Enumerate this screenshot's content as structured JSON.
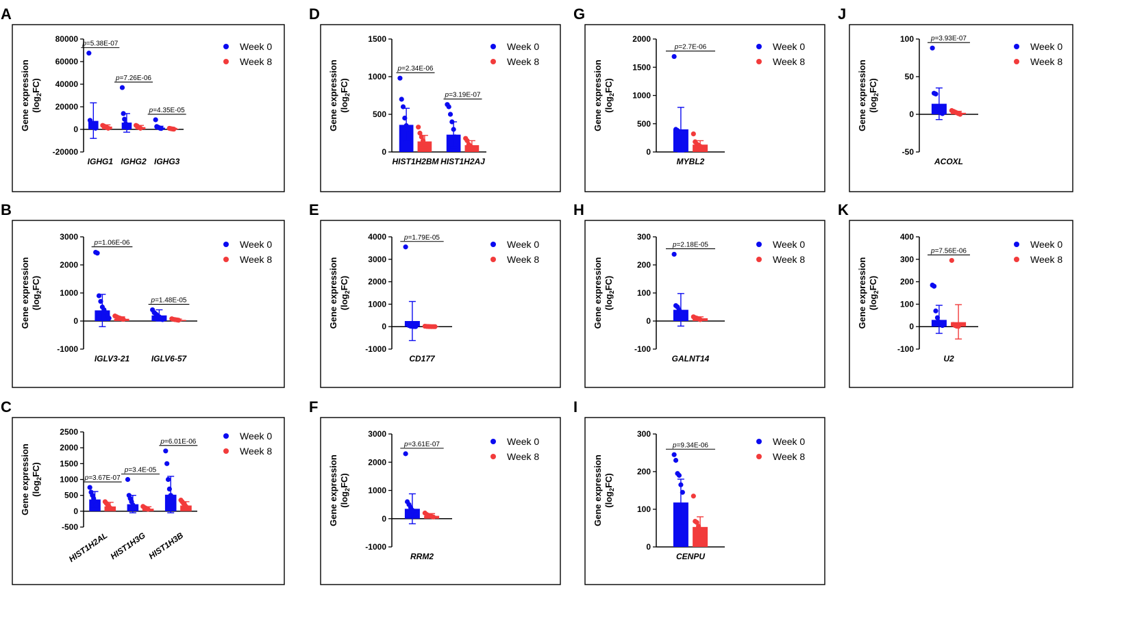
{
  "colors": {
    "week0": "#0b0bf0",
    "week8": "#f23b3b"
  },
  "y_label_line1": "Gene expression",
  "y_label_line2": "(log",
  "y_label_sub": "2",
  "y_label_end": "FC)",
  "p_prefix": "p",
  "legend": [
    "Week 0",
    "Week 8"
  ],
  "chart_data": [
    {
      "id": "A",
      "letter": "A",
      "type": "bar",
      "ylim": [
        -20000,
        80000
      ],
      "yticks": [
        -20000,
        0,
        20000,
        40000,
        60000,
        80000
      ],
      "rotate": false,
      "categories": [
        "IGHG1",
        "IGHG2",
        "IGHG3"
      ],
      "series": [
        {
          "name": "Week 0",
          "values": [
            7500,
            6000,
            1500
          ],
          "err_up": [
            23500,
            14000,
            2800
          ],
          "err_down": [
            -8000,
            -2500,
            500
          ],
          "points": [
            [
              67500,
              8000,
              5000,
              3000,
              2000,
              1500,
              1000
            ],
            [
              37000,
              14000,
              9000,
              5000,
              3000,
              1500
            ],
            [
              8500,
              2500,
              2000,
              1500,
              1000,
              800
            ]
          ]
        },
        {
          "name": "Week 8",
          "values": [
            2500,
            2000,
            500
          ],
          "err_up": [
            4000,
            3500,
            900
          ],
          "err_down": [
            1000,
            500,
            100
          ],
          "points": [
            [
              3500,
              3000,
              2500,
              2000,
              1500,
              1000
            ],
            [
              3500,
              3000,
              2000,
              1500,
              1000
            ],
            [
              900,
              700,
              500,
              300,
              200
            ]
          ]
        }
      ],
      "pvalues": [
        {
          "cat": 0,
          "text": "=5.38E-07"
        },
        {
          "cat": 1,
          "text": "=7.26E-06"
        },
        {
          "cat": 2,
          "text": "=4.35E-05"
        }
      ]
    },
    {
      "id": "B",
      "letter": "B",
      "type": "bar",
      "ylim": [
        -1000,
        3000
      ],
      "yticks": [
        -1000,
        0,
        1000,
        2000,
        3000
      ],
      "rotate": false,
      "categories": [
        "IGLV3-21",
        "IGLV6-57"
      ],
      "series": [
        {
          "name": "Week 0",
          "values": [
            380,
            200
          ],
          "err_up": [
            950,
            400
          ],
          "err_down": [
            -200,
            0
          ],
          "points": [
            [
              2450,
              2420,
              900,
              700,
              500,
              400,
              300,
              200,
              100
            ],
            [
              400,
              300,
              250,
              200,
              150,
              100,
              50
            ]
          ]
        },
        {
          "name": "Week 8",
          "values": [
            80,
            40
          ],
          "err_up": [
            150,
            70
          ],
          "err_down": [
            20,
            10
          ],
          "points": [
            [
              180,
              150,
              120,
              100,
              80,
              60
            ],
            [
              80,
              60,
              50,
              40,
              30
            ]
          ]
        }
      ],
      "pvalues": [
        {
          "cat": 0,
          "text": "=1.06E-06"
        },
        {
          "cat": 1,
          "text": "=1.48E-05"
        }
      ]
    },
    {
      "id": "C",
      "letter": "C",
      "type": "bar",
      "ylim": [
        -500,
        2500
      ],
      "yticks": [
        -500,
        0,
        500,
        1000,
        1500,
        2000,
        2500
      ],
      "rotate": true,
      "categories": [
        "HIST1H2AL",
        "HIST1H3G",
        "HIST1H3B"
      ],
      "series": [
        {
          "name": "Week 0",
          "values": [
            370,
            220,
            520
          ],
          "err_up": [
            620,
            500,
            1100
          ],
          "err_down": [
            120,
            -50,
            -50
          ],
          "points": [
            [
              750,
              600,
              500,
              400,
              300,
              200
            ],
            [
              1000,
              500,
              400,
              300,
              200,
              100
            ],
            [
              1900,
              1500,
              1000,
              700,
              500,
              300
            ]
          ]
        },
        {
          "name": "Week 8",
          "values": [
            150,
            80,
            180
          ],
          "err_up": [
            280,
            140,
            300
          ],
          "err_down": [
            50,
            20,
            80
          ],
          "points": [
            [
              300,
              250,
              200,
              150,
              100
            ],
            [
              150,
              120,
              100,
              80,
              60
            ],
            [
              350,
              300,
              250,
              200,
              150
            ]
          ]
        }
      ],
      "pvalues": [
        {
          "cat": 0,
          "text": "=3.67E-07"
        },
        {
          "cat": 1,
          "text": "=3.4E-05"
        },
        {
          "cat": 2,
          "text": "=6.01E-06"
        }
      ]
    },
    {
      "id": "D",
      "letter": "D",
      "type": "bar",
      "ylim": [
        0,
        1500
      ],
      "yticks": [
        0,
        500,
        1000,
        1500
      ],
      "rotate": false,
      "categories": [
        "HIST1H2BM",
        "HIST1H2AJ"
      ],
      "series": [
        {
          "name": "Week 0",
          "values": [
            360,
            230
          ],
          "err_up": [
            580,
            400
          ],
          "err_down": [
            140,
            60
          ],
          "points": [
            [
              980,
              700,
              600,
              450,
              350,
              300
            ],
            [
              630,
              600,
              500,
              400,
              300,
              200
            ]
          ]
        },
        {
          "name": "Week 8",
          "values": [
            140,
            90
          ],
          "err_up": [
            220,
            150
          ],
          "err_down": [
            60,
            30
          ],
          "points": [
            [
              330,
              250,
              200,
              150,
              100
            ],
            [
              180,
              150,
              100,
              80,
              60
            ]
          ]
        }
      ],
      "pvalues": [
        {
          "cat": 0,
          "text": "=2.34E-06"
        },
        {
          "cat": 1,
          "text": "=3.19E-07"
        }
      ]
    },
    {
      "id": "E",
      "letter": "E",
      "type": "bar",
      "ylim": [
        -1000,
        4000
      ],
      "yticks": [
        -1000,
        0,
        1000,
        2000,
        3000,
        4000
      ],
      "rotate": false,
      "categories": [
        "CD177"
      ],
      "series": [
        {
          "name": "Week 0",
          "values": [
            250
          ],
          "err_up": [
            1120
          ],
          "err_down": [
            -620
          ],
          "points": [
            [
              3550,
              100,
              50,
              20,
              10,
              5,
              2
            ]
          ]
        },
        {
          "name": "Week 8",
          "values": [
            10
          ],
          "err_up": [
            20
          ],
          "err_down": [
            0
          ],
          "points": [
            [
              20,
              10,
              5,
              2,
              1,
              0,
              0
            ]
          ]
        }
      ],
      "pvalues": [
        {
          "cat": 0,
          "text": "=1.79E-05"
        }
      ]
    },
    {
      "id": "F",
      "letter": "F",
      "type": "bar",
      "ylim": [
        -1000,
        3000
      ],
      "yticks": [
        -1000,
        0,
        1000,
        2000,
        3000
      ],
      "rotate": false,
      "categories": [
        "RRM2"
      ],
      "series": [
        {
          "name": "Week 0",
          "values": [
            350
          ],
          "err_up": [
            880
          ],
          "err_down": [
            -180
          ],
          "points": [
            [
              2300,
              600,
              500,
              400,
              300,
              200,
              150
            ]
          ]
        },
        {
          "name": "Week 8",
          "values": [
            100
          ],
          "err_up": [
            180
          ],
          "err_down": [
            30
          ],
          "points": [
            [
              200,
              150,
              120,
              100,
              80,
              60
            ]
          ]
        }
      ],
      "pvalues": [
        {
          "cat": 0,
          "text": "=3.61E-07"
        }
      ]
    },
    {
      "id": "G",
      "letter": "G",
      "type": "bar",
      "ylim": [
        0,
        2000
      ],
      "yticks": [
        0,
        500,
        1000,
        1500,
        2000
      ],
      "rotate": false,
      "categories": [
        "MYBL2"
      ],
      "series": [
        {
          "name": "Week 0",
          "values": [
            400
          ],
          "err_up": [
            790
          ],
          "err_down": [
            0
          ],
          "points": [
            [
              1690,
              400,
              380,
              360,
              340
            ]
          ]
        },
        {
          "name": "Week 8",
          "values": [
            130
          ],
          "err_up": [
            200
          ],
          "err_down": [
            60
          ],
          "points": [
            [
              320,
              180,
              140,
              120,
              100
            ]
          ]
        }
      ],
      "pvalues": [
        {
          "cat": 0,
          "text": "=2.7E-06"
        }
      ]
    },
    {
      "id": "H",
      "letter": "H",
      "type": "bar",
      "ylim": [
        -100,
        300
      ],
      "yticks": [
        -100,
        0,
        100,
        200,
        300
      ],
      "rotate": false,
      "categories": [
        "GALNT14"
      ],
      "series": [
        {
          "name": "Week 0",
          "values": [
            40
          ],
          "err_up": [
            98
          ],
          "err_down": [
            -18
          ],
          "points": [
            [
              238,
              55,
              50,
              40,
              30,
              20,
              10
            ]
          ]
        },
        {
          "name": "Week 8",
          "values": [
            10
          ],
          "err_up": [
            15
          ],
          "err_down": [
            5
          ],
          "points": [
            [
              15,
              12,
              10,
              8,
              5
            ]
          ]
        }
      ],
      "pvalues": [
        {
          "cat": 0,
          "text": "=2.18E-05"
        }
      ]
    },
    {
      "id": "I",
      "letter": "I",
      "type": "bar",
      "ylim": [
        0,
        300
      ],
      "yticks": [
        0,
        100,
        200,
        300
      ],
      "rotate": false,
      "categories": [
        "CENPU"
      ],
      "series": [
        {
          "name": "Week 0",
          "values": [
            118
          ],
          "err_up": [
            180
          ],
          "err_down": [
            60
          ],
          "points": [
            [
              245,
              230,
              195,
              190,
              165,
              145
            ]
          ]
        },
        {
          "name": "Week 8",
          "values": [
            53
          ],
          "err_up": [
            80
          ],
          "err_down": [
            30
          ],
          "points": [
            [
              135,
              68,
              65,
              55,
              45
            ]
          ]
        }
      ],
      "pvalues": [
        {
          "cat": 0,
          "text": "=9.34E-06"
        }
      ]
    },
    {
      "id": "J",
      "letter": "J",
      "type": "bar",
      "ylim": [
        -50,
        100
      ],
      "yticks": [
        -50,
        0,
        50,
        100
      ],
      "rotate": false,
      "categories": [
        "ACOXL"
      ],
      "series": [
        {
          "name": "Week 0",
          "values": [
            14
          ],
          "err_up": [
            35
          ],
          "err_down": [
            -7
          ],
          "points": [
            [
              88,
              28,
              27,
              10,
              5,
              2,
              1
            ]
          ]
        },
        {
          "name": "Week 8",
          "values": [
            2
          ],
          "err_up": [
            4
          ],
          "err_down": [
            0
          ],
          "points": [
            [
              5,
              4,
              3,
              2,
              1,
              0
            ]
          ]
        }
      ],
      "pvalues": [
        {
          "cat": 0,
          "text": "=3.93E-07"
        }
      ]
    },
    {
      "id": "K",
      "letter": "K",
      "type": "bar",
      "ylim": [
        -100,
        400
      ],
      "yticks": [
        -100,
        0,
        100,
        200,
        300,
        400
      ],
      "rotate": false,
      "categories": [
        "U2"
      ],
      "series": [
        {
          "name": "Week 0",
          "values": [
            30
          ],
          "err_up": [
            95
          ],
          "err_down": [
            -30
          ],
          "points": [
            [
              185,
              180,
              70,
              40,
              20,
              10,
              5
            ]
          ]
        },
        {
          "name": "Week 8",
          "values": [
            20
          ],
          "err_up": [
            98
          ],
          "err_down": [
            -55
          ],
          "points": [
            [
              295,
              10,
              5,
              2,
              1
            ]
          ]
        }
      ],
      "pvalues": [
        {
          "cat": 0,
          "text": "=7.56E-06"
        }
      ]
    }
  ]
}
